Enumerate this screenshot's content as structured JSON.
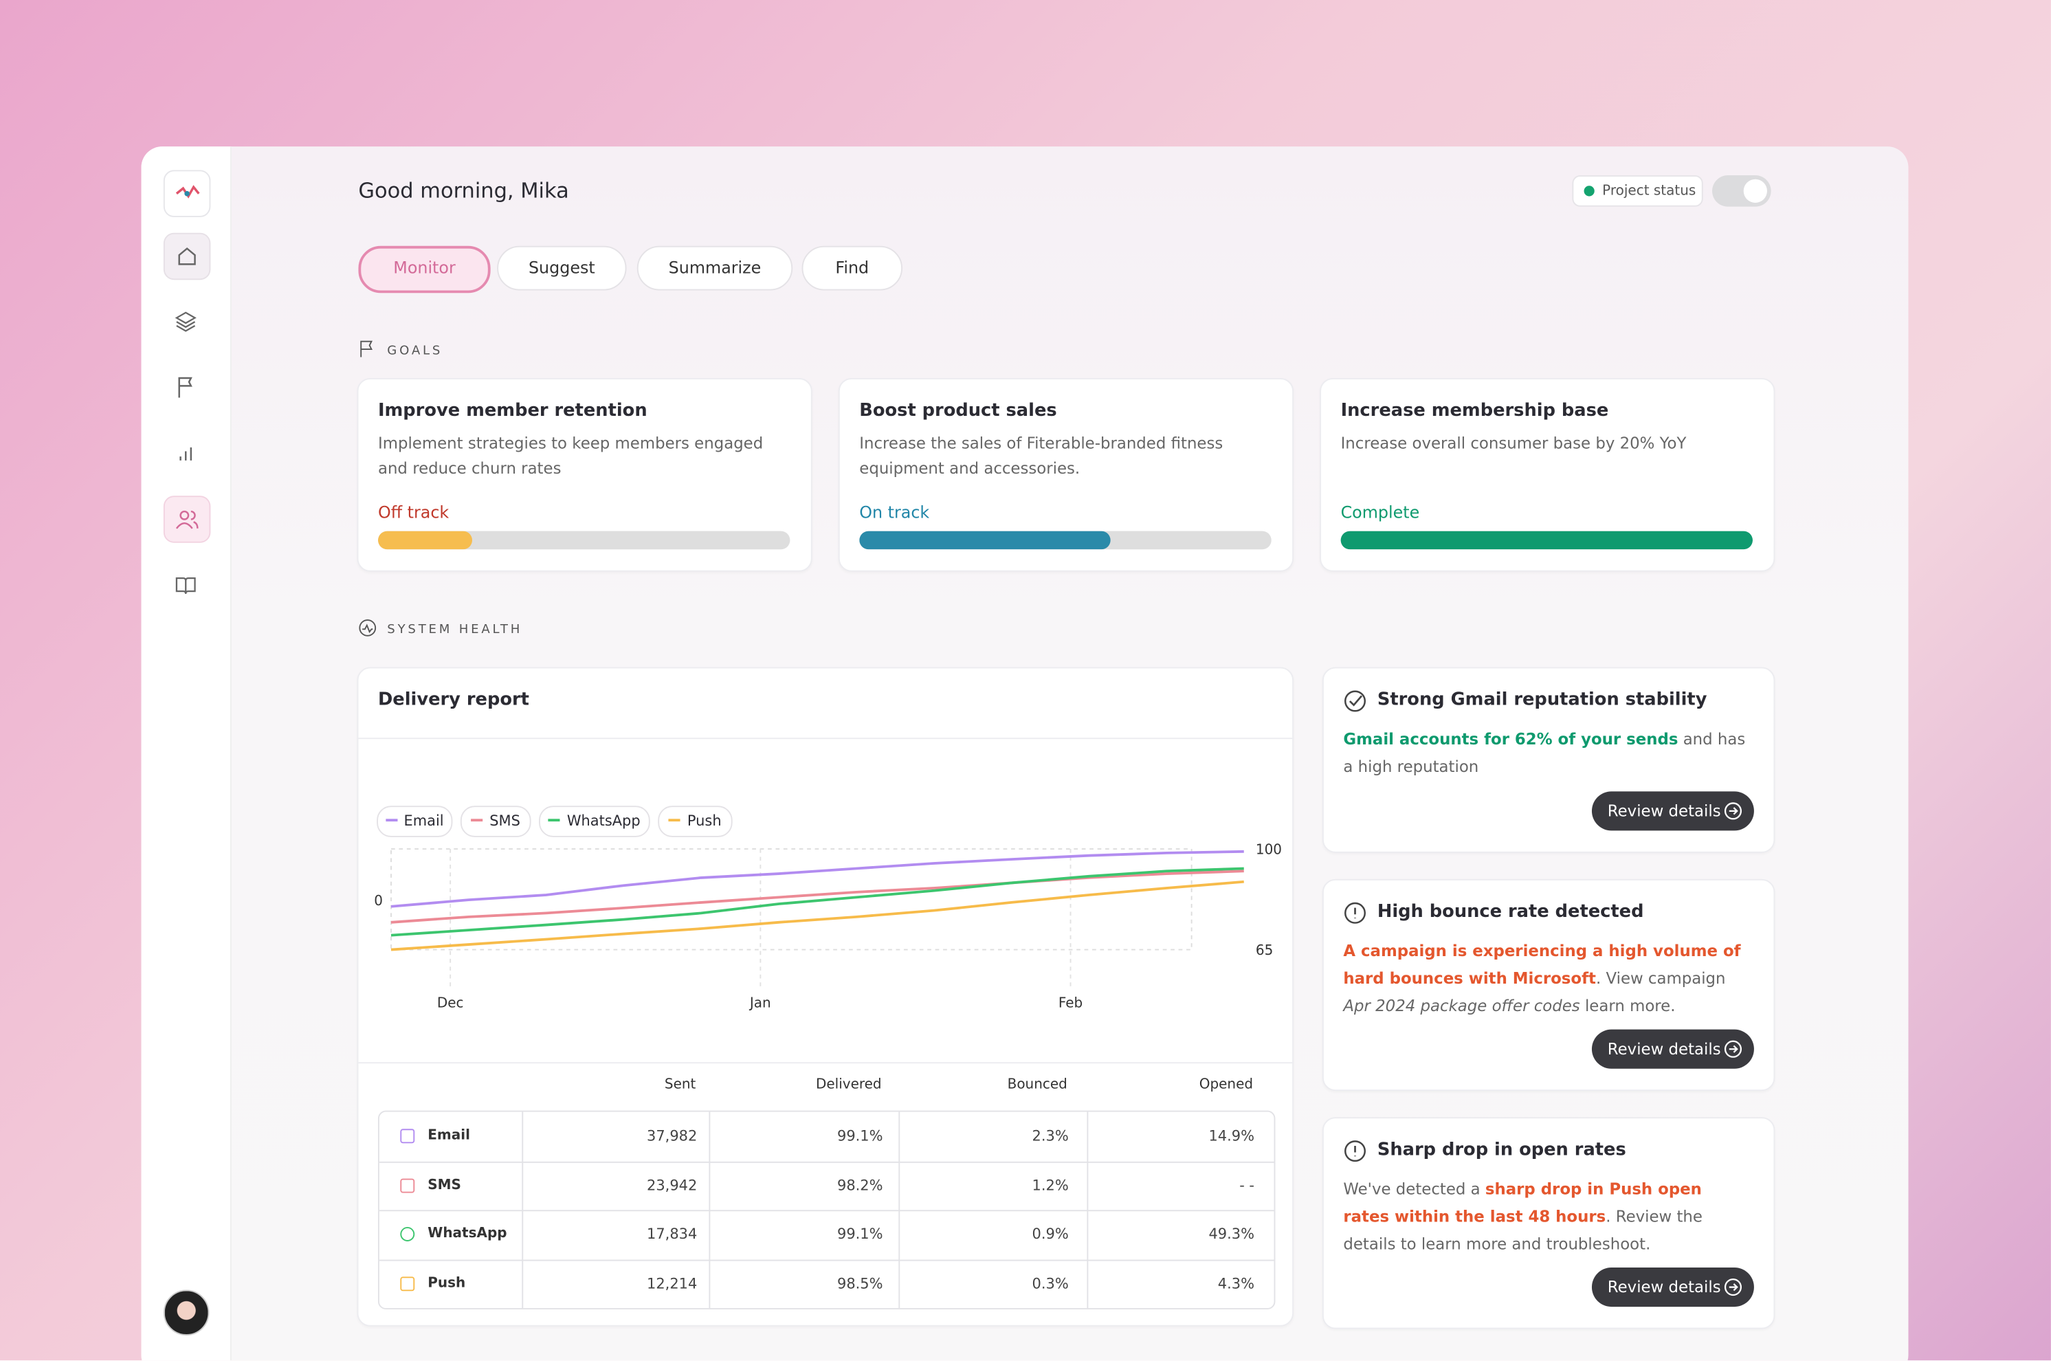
{
  "header": {
    "greeting": "Good morning, Mika",
    "project_status": "Project status"
  },
  "tabs": [
    "Monitor",
    "Suggest",
    "Summarize",
    "Find"
  ],
  "goals": {
    "heading": "GOALS",
    "items": [
      {
        "title": "Improve member retention",
        "description": "Implement strategies to keep members engaged and reduce churn rates",
        "status": "Off track",
        "status_color": "#c0392b",
        "progress": 23,
        "color": "#f6bd4f"
      },
      {
        "title": "Boost product sales",
        "description": "Increase the sales of Fiterable-branded fitness equipment and accessories.",
        "status": "On track",
        "status_color": "#2186a8",
        "progress": 61,
        "color": "#2a8aa9"
      },
      {
        "title": "Increase membership base",
        "description": "Increase overall consumer base by 20% YoY",
        "status": "Complete",
        "status_color": "#0e9a6e",
        "progress": 100,
        "color": "#0f9a6f"
      }
    ]
  },
  "system_health": {
    "heading": "SYSTEM HEALTH"
  },
  "chart_data": {
    "type": "line",
    "title": "Delivery report",
    "categories": [
      null,
      "Dec",
      null,
      null,
      null,
      "Jan",
      null,
      null,
      null,
      "Feb",
      null,
      null
    ],
    "series": [
      {
        "name": "Email",
        "color": "#b28cf0",
        "values": [
          80,
          82.3,
          84,
          87.3,
          90,
          91.4,
          93.2,
          95,
          96.4,
          97.7,
          98.6,
          99.1
        ]
      },
      {
        "name": "SMS",
        "color": "#ec8a95",
        "values": [
          74.5,
          76.4,
          77.7,
          79.5,
          81.4,
          83.2,
          85,
          86.4,
          88.2,
          90,
          91.4,
          92.3
        ]
      },
      {
        "name": "WhatsApp",
        "color": "#3cc56e",
        "values": [
          70,
          71.8,
          73.6,
          75.5,
          77.7,
          80.9,
          83.2,
          85.5,
          88.2,
          90.5,
          92.3,
          93.2
        ]
      },
      {
        "name": "Push",
        "color": "#f7bb4a",
        "values": [
          65,
          66.8,
          68.6,
          70.5,
          72.3,
          74.5,
          76.4,
          78.6,
          81.4,
          84,
          86.4,
          88.6
        ]
      }
    ],
    "ylim": [
      65,
      100
    ],
    "yticks": [
      65,
      100
    ],
    "annotations": [
      "0"
    ]
  },
  "table": {
    "columns": [
      "Sent",
      "Delivered",
      "Bounced",
      "Opened"
    ],
    "rows": [
      [
        "Email",
        "37,982",
        "99.1%",
        "2.3%",
        "14.9%"
      ],
      [
        "SMS",
        "23,942",
        "98.2%",
        "1.2%",
        "- -"
      ],
      [
        "WhatsApp",
        "17,834",
        "99.1%",
        "0.9%",
        "49.3%"
      ],
      [
        "Push",
        "12,214",
        "98.5%",
        "0.3%",
        "4.3%"
      ]
    ]
  },
  "insights": [
    {
      "title": "Strong Gmail reputation stability",
      "icon": "check",
      "segments": [
        {
          "text": "Gmail accounts for 62% of your sends",
          "style": "green"
        },
        {
          "text": " and has a high reputation",
          "style": "plain"
        }
      ],
      "button": "Review details"
    },
    {
      "title": "High bounce rate detected",
      "icon": "alert",
      "segments": [
        {
          "text": "A campaign is experiencing a high volume of hard bounces with Microsoft",
          "style": "red"
        },
        {
          "text": ". View campaign ",
          "style": "plain"
        },
        {
          "text": "Apr 2024 package offer codes",
          "style": "italic"
        },
        {
          "text": " learn more.",
          "style": "plain"
        }
      ],
      "button": "Review details"
    },
    {
      "title": "Sharp drop in open rates",
      "icon": "alert",
      "segments": [
        {
          "text": "We've detected a ",
          "style": "plain"
        },
        {
          "text": "sharp drop in Push open rates within the last 48 hours",
          "style": "red"
        },
        {
          "text": ". Review the details to learn more and troubleshoot.",
          "style": "plain"
        }
      ],
      "button": "Review details"
    }
  ]
}
